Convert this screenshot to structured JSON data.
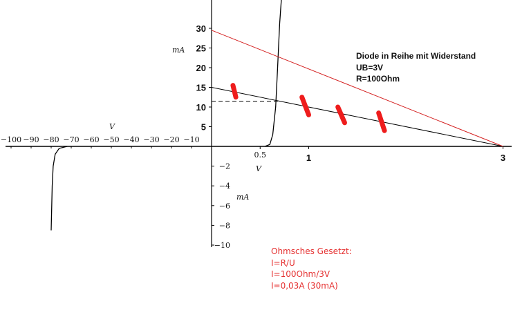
{
  "chart_data": {
    "type": "line",
    "title": "",
    "annotation_lines": [
      "Diode in Reihe mit Widerstand",
      "UB=3V",
      "R=100Ohm"
    ],
    "note_lines": [
      "Ohmsches Gesetzt:",
      "I=R/U",
      "I=100Ohm/3V",
      "I=0,03A (30mA)"
    ],
    "units": {
      "x_neg": "V",
      "x_pos": "V",
      "y_pos": "mA",
      "y_neg": "mA"
    },
    "x_ticks_neg": [
      {
        "value": -100,
        "label": "−100"
      },
      {
        "value": -90,
        "label": "−90"
      },
      {
        "value": -80,
        "label": "−80"
      },
      {
        "value": -70,
        "label": "−70"
      },
      {
        "value": -60,
        "label": "−60"
      },
      {
        "value": -50,
        "label": "−50"
      },
      {
        "value": -40,
        "label": "−40"
      },
      {
        "value": -30,
        "label": "−30"
      },
      {
        "value": -20,
        "label": "−20"
      },
      {
        "value": -10,
        "label": "−10"
      }
    ],
    "x_ticks_pos": [
      {
        "value": 0.5,
        "label": "0.5"
      },
      {
        "value": 1,
        "label": "1"
      },
      {
        "value": 3,
        "label": "3"
      }
    ],
    "y_ticks_pos": [
      {
        "value": 5,
        "label": "5"
      },
      {
        "value": 10,
        "label": "10"
      },
      {
        "value": 15,
        "label": "15"
      },
      {
        "value": 20,
        "label": "20"
      },
      {
        "value": 25,
        "label": "25"
      },
      {
        "value": 30,
        "label": "30"
      }
    ],
    "y_ticks_neg": [
      {
        "value": -2,
        "label": "−2"
      },
      {
        "value": -4,
        "label": "−4"
      },
      {
        "value": -6,
        "label": "−6"
      },
      {
        "value": -8,
        "label": "−8"
      },
      {
        "value": -10,
        "label": "−10"
      }
    ],
    "series": [
      {
        "kind": "diode-forward",
        "color": "#000000",
        "points": [
          [
            0.55,
            0
          ],
          [
            0.6,
            0.5
          ],
          [
            0.63,
            3
          ],
          [
            0.66,
            10
          ],
          [
            0.68,
            20
          ],
          [
            0.7,
            31
          ],
          [
            0.72,
            38
          ]
        ]
      },
      {
        "kind": "diode-reverse",
        "color": "#000000",
        "points": [
          [
            -72,
            0
          ],
          [
            -76,
            -0.2
          ],
          [
            -78,
            -0.8
          ],
          [
            -79,
            -2
          ],
          [
            -79.5,
            -4
          ],
          [
            -80,
            -8.5
          ]
        ]
      },
      {
        "kind": "load-line-100ohm",
        "color": "#000000",
        "points": [
          [
            0,
            15
          ],
          [
            3,
            0
          ]
        ]
      },
      {
        "kind": "load-line-red",
        "color": "#d42020",
        "points": [
          [
            0,
            29.5
          ],
          [
            3,
            0
          ]
        ]
      }
    ],
    "operating_point": {
      "x": 0.7,
      "y": 11.5
    },
    "marks": [
      {
        "x1": 0.22,
        "y1": 15.5,
        "x2": 0.25,
        "y2": 12.5
      },
      {
        "x1": 0.93,
        "y1": 12.5,
        "x2": 1.0,
        "y2": 8.0
      },
      {
        "x1": 1.3,
        "y1": 10.0,
        "x2": 1.37,
        "y2": 6.0
      },
      {
        "x1": 1.72,
        "y1": 8.5,
        "x2": 1.78,
        "y2": 4.0
      }
    ],
    "mark_color": "#ee1c1c"
  }
}
